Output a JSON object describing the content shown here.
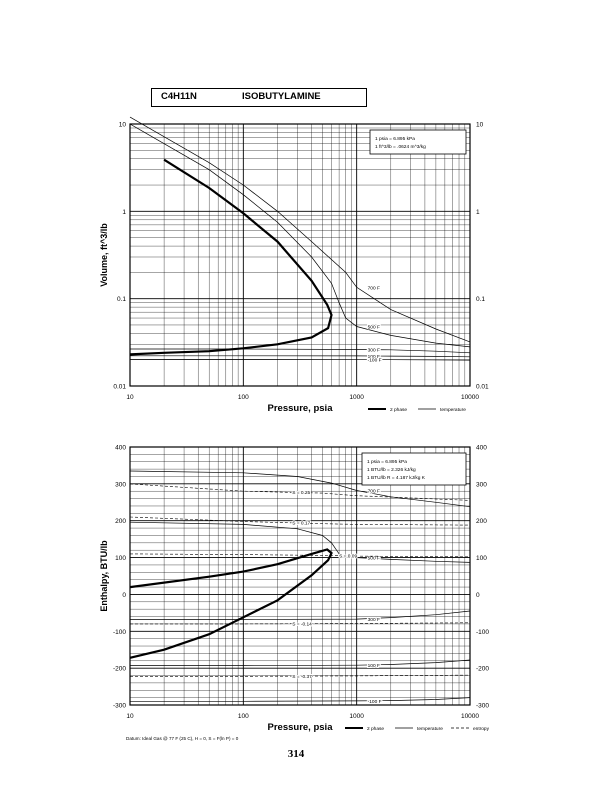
{
  "title": {
    "formula": "C4H11N",
    "name": "ISOBUTYLAMINE"
  },
  "page_number": "314",
  "chart_data": [
    {
      "type": "line",
      "scale": {
        "x": "log",
        "y": "log"
      },
      "xlabel": "Pressure, psia",
      "ylabel": "Volume, ft^3/lb",
      "xlim": [
        10,
        10000
      ],
      "ylim": [
        0.01,
        10
      ],
      "x_ticks": [
        10,
        100,
        1000,
        10000
      ],
      "y_ticks": [
        0.01,
        0.1,
        1,
        10
      ],
      "x_tick_labels": [
        "10",
        "100",
        "1000",
        "10000"
      ],
      "y_tick_labels": [
        "0.01",
        "0.1",
        "1",
        "10"
      ],
      "grid": true,
      "conversion_box": [
        "1 psia = 6.895 kPa",
        "1 ft^3/lb = .0624 m^3/kg"
      ],
      "legend": {
        "position": "bottom-right",
        "entries": [
          "2 phase",
          "temperature"
        ]
      },
      "series": [
        {
          "kind": "2 phase",
          "x": [
            20,
            50,
            100,
            200,
            400,
            550,
            600,
            560,
            400,
            200,
            100,
            50,
            20,
            10
          ],
          "y": [
            3.9,
            1.85,
            0.95,
            0.45,
            0.16,
            0.085,
            0.065,
            0.046,
            0.036,
            0.03,
            0.027,
            0.025,
            0.024,
            0.023
          ]
        },
        {
          "kind": "temperature",
          "label": "700 F",
          "x": [
            10,
            50,
            100,
            200,
            400,
            800,
            1000,
            2000,
            5000,
            10000
          ],
          "y": [
            12,
            3.6,
            2.0,
            1.0,
            0.45,
            0.2,
            0.135,
            0.075,
            0.045,
            0.032
          ]
        },
        {
          "kind": "temperature",
          "label": "500 F",
          "x": [
            10,
            50,
            100,
            200,
            400,
            600,
            700,
            800,
            1000,
            2000,
            5000,
            10000
          ],
          "y": [
            10,
            3.0,
            1.55,
            0.75,
            0.3,
            0.15,
            0.09,
            0.06,
            0.048,
            0.038,
            0.031,
            0.028
          ]
        },
        {
          "kind": "temperature",
          "label": "300 F",
          "x": [
            10,
            100,
            1000,
            2000,
            5000,
            10000
          ],
          "y": [
            0.0265,
            0.0265,
            0.0262,
            0.026,
            0.025,
            0.024
          ]
        },
        {
          "kind": "temperature",
          "label": "100 F",
          "x": [
            10,
            100,
            1000,
            2000,
            5000,
            10000
          ],
          "y": [
            0.0222,
            0.0222,
            0.0221,
            0.022,
            0.0218,
            0.0216
          ]
        },
        {
          "kind": "temperature",
          "label": "-100 F",
          "x": [
            10,
            100,
            1000,
            2000,
            5000,
            10000
          ],
          "y": [
            0.0201,
            0.0201,
            0.02,
            0.02,
            0.0199,
            0.0198
          ]
        }
      ]
    },
    {
      "type": "line",
      "scale": {
        "x": "log",
        "y": "linear"
      },
      "xlabel": "Pressure, psia",
      "ylabel": "Enthalpy, BTU/lb",
      "xlim": [
        10,
        10000
      ],
      "ylim": [
        -300,
        400
      ],
      "x_ticks": [
        10,
        100,
        1000,
        10000
      ],
      "y_ticks": [
        -300,
        -200,
        -100,
        0,
        100,
        200,
        300,
        400
      ],
      "x_tick_labels": [
        "10",
        "100",
        "1000",
        "10000"
      ],
      "y_tick_labels": [
        "-300",
        "-200",
        "-100",
        "0",
        "100",
        "200",
        "300",
        "400"
      ],
      "grid": true,
      "conversion_box": [
        "1 psia = 6.895 kPa",
        "1 BTU/lb = 2.326 kJ/kg",
        "1 BTU/lb R = 4.187 kJ/kg K"
      ],
      "footnote": "Datum: Ideal Gas @ 77 F (25 C), H = 0, S = F(ln P) = 0",
      "legend": {
        "position": "bottom-right",
        "entries": [
          "2 phase",
          "temperature",
          "entropy"
        ]
      },
      "series": [
        {
          "kind": "2 phase",
          "x": [
            10,
            50,
            100,
            200,
            400,
            550,
            600,
            560,
            400,
            200,
            100,
            50,
            20,
            10
          ],
          "y": [
            20,
            48,
            62,
            82,
            110,
            122,
            112,
            93,
            52,
            -16,
            -62,
            -108,
            -150,
            -172
          ]
        },
        {
          "kind": "temperature",
          "label": "700 F",
          "x": [
            10,
            100,
            300,
            600,
            1000,
            2000,
            5000,
            10000
          ],
          "y": [
            335,
            330,
            320,
            302,
            282,
            265,
            250,
            238
          ]
        },
        {
          "kind": "temperature",
          "label": "500 F",
          "x": [
            10,
            100,
            300,
            500,
            600,
            700,
            800,
            1000,
            2000,
            5000,
            10000
          ],
          "y": [
            196,
            190,
            178,
            160,
            140,
            110,
            103,
            100,
            95,
            90,
            87
          ]
        },
        {
          "kind": "temperature",
          "label": "300 F",
          "x": [
            10,
            100,
            1000,
            2000,
            5000,
            10000
          ],
          "y": [
            -68,
            -68,
            -67,
            -63,
            -55,
            -45
          ]
        },
        {
          "kind": "temperature",
          "label": "100 F",
          "x": [
            10,
            100,
            1000,
            2000,
            5000,
            10000
          ],
          "y": [
            -193,
            -193,
            -192,
            -190,
            -185,
            -178
          ]
        },
        {
          "kind": "temperature",
          "label": "-100 F",
          "x": [
            10,
            100,
            1000,
            2000,
            5000,
            10000
          ],
          "y": [
            -290,
            -290,
            -289,
            -288,
            -285,
            -280
          ]
        },
        {
          "kind": "entropy",
          "label": "S = 0.25",
          "x": [
            10,
            100,
            500,
            1000,
            10000
          ],
          "y": [
            300,
            280,
            275,
            268,
            255
          ]
        },
        {
          "kind": "entropy",
          "label": "S = 0.17",
          "x": [
            10,
            100,
            500,
            1000,
            10000
          ],
          "y": [
            210,
            198,
            192,
            190,
            188
          ]
        },
        {
          "kind": "entropy",
          "label": "S = 0.09",
          "x": [
            10,
            100,
            500,
            1000,
            10000
          ],
          "y": [
            110,
            108,
            106,
            104,
            102
          ]
        },
        {
          "kind": "entropy",
          "label": "S = -0.14",
          "x": [
            10,
            100,
            1000,
            10000
          ],
          "y": [
            -80,
            -80,
            -79,
            -77
          ]
        },
        {
          "kind": "entropy",
          "label": "S = -0.37",
          "x": [
            10,
            100,
            1000,
            10000
          ],
          "y": [
            -222,
            -222,
            -221,
            -219
          ]
        }
      ]
    }
  ]
}
